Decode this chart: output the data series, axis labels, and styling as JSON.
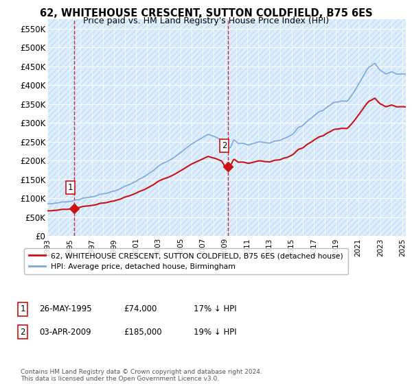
{
  "title1": "62, WHITEHOUSE CRESCENT, SUTTON COLDFIELD, B75 6ES",
  "title2": "Price paid vs. HM Land Registry's House Price Index (HPI)",
  "ylabel_ticks": [
    "£0",
    "£50K",
    "£100K",
    "£150K",
    "£200K",
    "£250K",
    "£300K",
    "£350K",
    "£400K",
    "£450K",
    "£500K",
    "£550K"
  ],
  "ytick_vals": [
    0,
    50000,
    100000,
    150000,
    200000,
    250000,
    300000,
    350000,
    400000,
    450000,
    500000,
    550000
  ],
  "ylim": [
    0,
    575000
  ],
  "xlim_start": 1993.0,
  "xlim_end": 2025.3,
  "hpi_color": "#7aaadd",
  "price_color": "#cc1111",
  "transaction1_x": 1995.39,
  "transaction1_y": 74000,
  "transaction2_x": 2009.25,
  "transaction2_y": 185000,
  "legend_line1": "62, WHITEHOUSE CRESCENT, SUTTON COLDFIELD, B75 6ES (detached house)",
  "legend_line2": "HPI: Average price, detached house, Birmingham",
  "table_entries": [
    {
      "num": "1",
      "date": "26-MAY-1995",
      "price": "£74,000",
      "hpi": "17% ↓ HPI"
    },
    {
      "num": "2",
      "date": "03-APR-2009",
      "price": "£185,000",
      "hpi": "19% ↓ HPI"
    }
  ],
  "footer": "Contains HM Land Registry data © Crown copyright and database right 2024.\nThis data is licensed under the Open Government Licence v3.0.",
  "bg_plot_color": "#ddeeff",
  "bg_fig_color": "#ffffff",
  "grid_color": "#ffffff",
  "hatch_pattern": "////",
  "hatch_color": "#c8ddf0"
}
